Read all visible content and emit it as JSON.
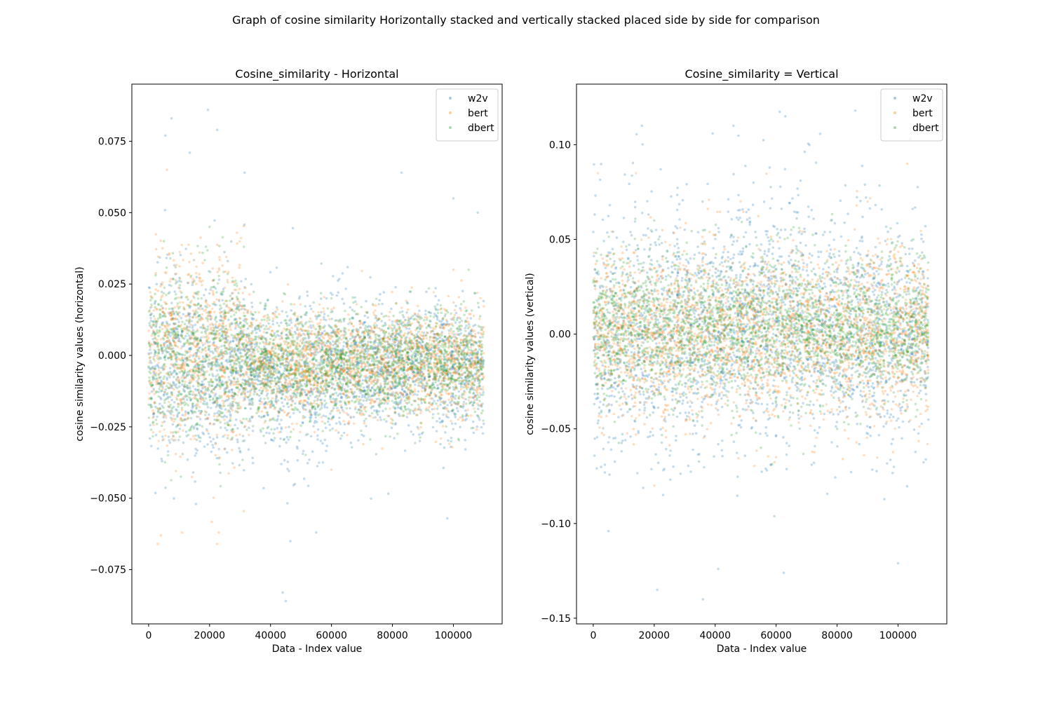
{
  "suptitle": "Graph of cosine similarity Horizontally stacked and vertically stacked placed side by side for comparison",
  "colors": {
    "w2v": "#1f77b4",
    "bert": "#ff7f0e",
    "dbert": "#2ca02c"
  },
  "chart_data": [
    {
      "type": "scatter",
      "title": "Cosine_similarity - Horizontal",
      "xlabel": "Data - Index value",
      "ylabel": "cosine similarity values (horizontal)",
      "xlim": [
        -5500,
        116000
      ],
      "ylim": [
        -0.094,
        0.095
      ],
      "xticks": [
        0,
        20000,
        40000,
        60000,
        80000,
        100000
      ],
      "xtick_labels": [
        "0",
        "20000",
        "40000",
        "60000",
        "80000",
        "100000"
      ],
      "yticks": [
        0.075,
        0.05,
        0.025,
        0.0,
        -0.025,
        -0.05,
        -0.075
      ],
      "ytick_labels": [
        "0.075",
        "0.050",
        "0.025",
        "0.000",
        "−0.025",
        "−0.050",
        "−0.075"
      ],
      "grid": false,
      "legend_position": "upper right",
      "x_range": [
        0,
        110000
      ],
      "series": [
        {
          "name": "w2v",
          "color": "#1f77b4",
          "alpha": 0.25,
          "distribution": "scatter of ~110000 points; mean ≈ -0.003, bulk within -0.035 to 0.03, outliers up to 0.086 (x≈19000) and down to -0.086 (x≈44000)",
          "sample_points": [
            [
              7500,
              0.083
            ],
            [
              19500,
              0.086
            ],
            [
              5500,
              0.077
            ],
            [
              13500,
              0.071
            ],
            [
              22500,
              0.079
            ],
            [
              31500,
              0.064
            ],
            [
              44000,
              -0.083
            ],
            [
              45000,
              -0.086
            ],
            [
              46500,
              -0.065
            ],
            [
              55000,
              -0.062
            ],
            [
              83000,
              0.064
            ],
            [
              108000,
              0.05
            ],
            [
              100000,
              0.055
            ],
            [
              48000,
              -0.045
            ],
            [
              98000,
              -0.057
            ]
          ]
        },
        {
          "name": "bert",
          "color": "#ff7f0e",
          "alpha": 0.25,
          "distribution": "scatter of ~110000 points; bulk within -0.03 to 0.04 for x<32000 with negative spikes to about -0.066 near x≈3000, 11000, 23000",
          "sample_points": [
            [
              3000,
              -0.066
            ],
            [
              4000,
              -0.063
            ],
            [
              11000,
              -0.062
            ],
            [
              22500,
              -0.066
            ],
            [
              23000,
              -0.062
            ],
            [
              6000,
              0.065
            ],
            [
              29000,
              0.043
            ],
            [
              60000,
              -0.04
            ],
            [
              100000,
              0.03
            ]
          ]
        },
        {
          "name": "dbert",
          "color": "#2ca02c",
          "alpha": 0.25,
          "distribution": "dense band centered near -0.002, spanning about -0.025 to 0.025 (wider, up to ±0.04, for x<32000)",
          "sample_points": [
            [
              5000,
              0.04
            ],
            [
              20000,
              0.045
            ],
            [
              60000,
              0.02
            ],
            [
              90000,
              -0.027
            ],
            [
              105000,
              0.03
            ]
          ]
        }
      ]
    },
    {
      "type": "scatter",
      "title": "Cosine_similarity = Vertical",
      "xlabel": "Data - Index value",
      "ylabel": "cosine similarity values (vertical)",
      "xlim": [
        -5500,
        116000
      ],
      "ylim": [
        -0.153,
        0.132
      ],
      "xticks": [
        0,
        20000,
        40000,
        60000,
        80000,
        100000
      ],
      "xtick_labels": [
        "0",
        "20000",
        "40000",
        "60000",
        "80000",
        "100000"
      ],
      "yticks": [
        0.1,
        0.05,
        0.0,
        -0.05,
        -0.1,
        -0.15
      ],
      "ytick_labels": [
        "0.10",
        "0.05",
        "0.00",
        "−0.05",
        "−0.10",
        "−0.15"
      ],
      "grid": false,
      "legend_position": "upper right",
      "x_range": [
        0,
        110000
      ],
      "series": [
        {
          "name": "w2v",
          "color": "#1f77b4",
          "alpha": 0.25,
          "distribution": "scatter of ~110000 points; bulk within -0.07 to 0.07, cluster up to 0.1 near x≈45000–70000, outliers down to -0.14",
          "sample_points": [
            [
              36000,
              -0.14
            ],
            [
              21000,
              -0.135
            ],
            [
              63000,
              0.115
            ],
            [
              86000,
              0.118
            ],
            [
              16000,
              0.11
            ],
            [
              46000,
              0.11
            ],
            [
              104000,
              0.103
            ],
            [
              100000,
              -0.121
            ],
            [
              41000,
              -0.124
            ],
            [
              62500,
              -0.126
            ],
            [
              5000,
              -0.104
            ]
          ]
        },
        {
          "name": "bert",
          "color": "#ff7f0e",
          "alpha": 0.25,
          "distribution": "scatter of ~110000 points; bulk within -0.06 to 0.06, outliers to about ±0.09",
          "sample_points": [
            [
              1500,
              0.085
            ],
            [
              14000,
              0.085
            ],
            [
              103000,
              0.09
            ],
            [
              20000,
              -0.08
            ],
            [
              60000,
              -0.065
            ],
            [
              90000,
              0.07
            ]
          ]
        },
        {
          "name": "dbert",
          "color": "#2ca02c",
          "alpha": 0.25,
          "distribution": "dense band centered near 0.0, spanning about -0.05 to 0.05",
          "sample_points": [
            [
              20000,
              0.06
            ],
            [
              55000,
              -0.06
            ],
            [
              80000,
              -0.05
            ],
            [
              105000,
              0.05
            ]
          ]
        }
      ]
    }
  ]
}
